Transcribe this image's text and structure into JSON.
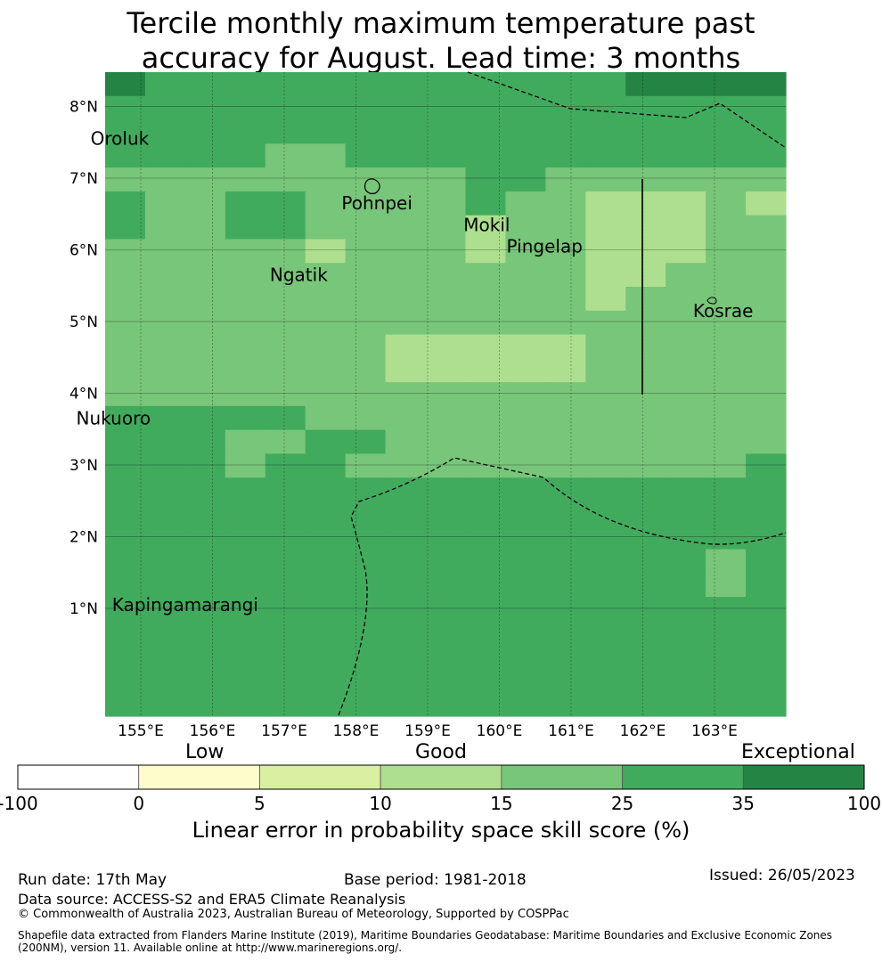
{
  "title_line1": "Tercile monthly maximum temperature past",
  "title_line2": "accuracy for August. Lead time: 3 months",
  "map": {
    "lon_labels": [
      "155°E",
      "156°E",
      "157°E",
      "158°E",
      "159°E",
      "160°E",
      "161°E",
      "162°E",
      "163°E"
    ],
    "lat_labels": [
      "8°N",
      "7°N",
      "6°N",
      "5°N",
      "4°N",
      "3°N",
      "2°N",
      "1°N"
    ],
    "places": [
      {
        "name": "Oroluk",
        "lon": 154.3,
        "lat": 7.55
      },
      {
        "name": "Pohnpei",
        "lon": 157.8,
        "lat": 6.65
      },
      {
        "name": "Mokil",
        "lon": 159.5,
        "lat": 6.35
      },
      {
        "name": "Pingelap",
        "lon": 160.1,
        "lat": 6.05
      },
      {
        "name": "Ngatik",
        "lon": 156.8,
        "lat": 5.65
      },
      {
        "name": "Kosrae",
        "lon": 162.7,
        "lat": 5.15
      },
      {
        "name": "Nukuoro",
        "lon": 154.1,
        "lat": 3.65
      },
      {
        "name": "Kapingamarangi",
        "lon": 154.6,
        "lat": 1.05
      }
    ],
    "colors": {
      "c0": "#ffffff",
      "c1": "#fffccb",
      "c2": "#d9efa1",
      "c3": "#addf8e",
      "c4": "#78c679",
      "c5": "#41ab5d",
      "c6": "#238443"
    },
    "grid_rows": [
      "65555555555556666",
      "55555555555555555",
      "55555555555555555",
      "55554455555555555",
      "44444444455444444",
      "54455444454433343",
      "54455444434433344",
      "44444344434433344",
      "44444444444433444",
      "44444444444434444",
      "44444444444444444",
      "44444443333344444",
      "44444443333344444",
      "44444444444444444",
      "55555444444444444",
      "55544554444444444",
      "55545544444444445",
      "55555555555555555",
      "55555555555555555",
      "55555555555555555",
      "55555555555555545",
      "55555555555555545",
      "55555555555555555",
      "55555555555555555",
      "55555555555555555",
      "55555555555555555",
      "55555555555555555"
    ]
  },
  "colorbar": {
    "category_labels": {
      "low": "Low",
      "good": "Good",
      "exceptional": "Exceptional"
    },
    "ticks": [
      "-100",
      "0",
      "5",
      "10",
      "15",
      "25",
      "35",
      "100"
    ],
    "segment_colors": [
      "#ffffff",
      "#fffccb",
      "#d9efa1",
      "#addf8e",
      "#78c679",
      "#41ab5d",
      "#238443"
    ],
    "caption": "Linear error in probability space skill score (%)"
  },
  "footer": {
    "run_date": "Run date: 17th May",
    "base_period": "Base period: 1981-2018",
    "issued": "Issued: 26/05/2023",
    "data_source": "Data source: ACCESS-S2 and ERA5 Climate Reanalysis",
    "copyright": "© Commonwealth of Australia 2023, Australian Bureau of Meteorology, Supported by COSPPac",
    "shapefile_line1": "Shapefile data extracted from Flanders Marine Institute (2019), Maritime Boundaries Geodatabase: Maritime Boundaries and Exclusive Economic Zones",
    "shapefile_line2": "(200NM), version 11. Available online at http://www.marineregions.org/."
  }
}
